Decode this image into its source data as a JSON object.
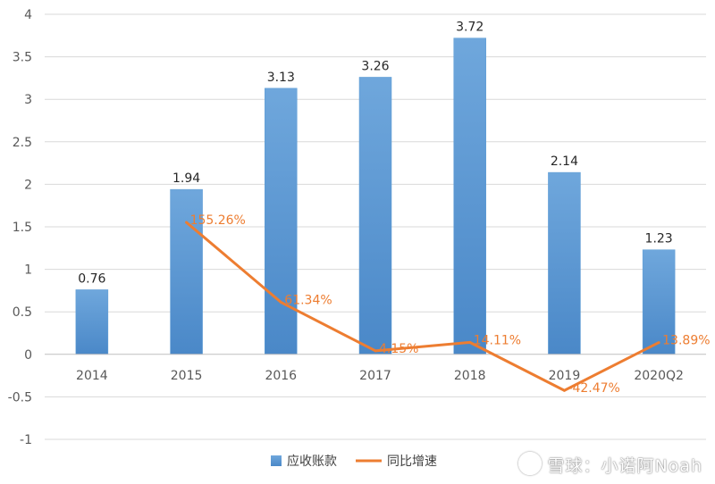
{
  "chart_data": {
    "type": "bar",
    "categories": [
      "2014",
      "2015",
      "2016",
      "2017",
      "2018",
      "2019",
      "2020Q2"
    ],
    "series": [
      {
        "name": "应收账款",
        "type": "bar",
        "color": "#5b9bd5",
        "values": [
          0.76,
          1.94,
          3.13,
          3.26,
          3.72,
          2.14,
          1.23
        ],
        "labels": [
          "0.76",
          "1.94",
          "3.13",
          "3.26",
          "3.72",
          "2.14",
          "1.23"
        ]
      },
      {
        "name": "同比增速",
        "type": "line",
        "color": "#ed7d31",
        "values": [
          null,
          1.5526,
          0.6134,
          0.0415,
          0.1411,
          -0.4247,
          0.1389
        ],
        "labels": [
          null,
          "155.26%",
          "61.34%",
          "4.15%",
          "14.11%",
          "-42.47%",
          "13.89%"
        ]
      }
    ],
    "ylim": [
      -1,
      4
    ],
    "yticks": [
      "-1",
      "-0.5",
      "0",
      "0.5",
      "1",
      "1.5",
      "2",
      "2.5",
      "3",
      "3.5",
      "4"
    ],
    "grid": true,
    "legend": "bottom"
  },
  "watermark": "雪球：小诺阿Noah"
}
